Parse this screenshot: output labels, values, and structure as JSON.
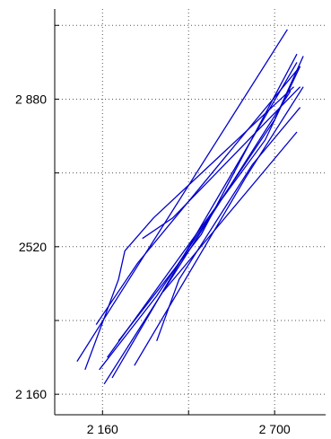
{
  "chart_data": {
    "type": "line",
    "title": "",
    "xlabel": "",
    "ylabel": "",
    "xlim": [
      2010,
      2860
    ],
    "ylim": [
      2110,
      3100
    ],
    "xticks": [
      2160,
      2430,
      2700
    ],
    "xtick_labels": [
      "2 160",
      "",
      "2 700"
    ],
    "yticks": [
      2160,
      2340,
      2520,
      2700,
      2880,
      3060
    ],
    "ytick_labels": [
      "2 160",
      "",
      "2520",
      "",
      "2 880",
      ""
    ],
    "grid": true,
    "line_color": "#0000cc",
    "series": [
      {
        "points": [
          [
            2080,
            2240
          ],
          [
            2740,
            3050
          ]
        ]
      },
      {
        "points": [
          [
            2105,
            2220
          ],
          [
            2210,
            2440
          ],
          [
            2230,
            2510
          ],
          [
            2320,
            2590
          ],
          [
            2760,
            2910
          ]
        ]
      },
      {
        "points": [
          [
            2140,
            2330
          ],
          [
            2270,
            2480
          ],
          [
            2780,
            2960
          ]
        ]
      },
      {
        "points": [
          [
            2150,
            2220
          ],
          [
            2330,
            2400
          ],
          [
            2700,
            2830
          ],
          [
            2790,
            2985
          ]
        ]
      },
      {
        "points": [
          [
            2165,
            2185
          ],
          [
            2750,
            2900
          ]
        ]
      },
      {
        "points": [
          [
            2175,
            2250
          ],
          [
            2500,
            2600
          ],
          [
            2670,
            2780
          ],
          [
            2780,
            2960
          ]
        ]
      },
      {
        "points": [
          [
            2190,
            2200
          ],
          [
            2770,
            2970
          ]
        ]
      },
      {
        "points": [
          [
            2210,
            2290
          ],
          [
            2470,
            2550
          ],
          [
            2770,
            2990
          ]
        ]
      },
      {
        "points": [
          [
            2260,
            2230
          ],
          [
            2610,
            2690
          ],
          [
            2790,
            2910
          ]
        ]
      },
      {
        "points": [
          [
            2350,
            2410
          ],
          [
            2770,
            2800
          ]
        ]
      },
      {
        "points": [
          [
            2285,
            2540
          ],
          [
            2380,
            2590
          ],
          [
            2780,
            2910
          ]
        ]
      },
      {
        "points": [
          [
            2330,
            2290
          ],
          [
            2400,
            2440
          ],
          [
            2630,
            2720
          ],
          [
            2780,
            2860
          ]
        ]
      }
    ]
  }
}
